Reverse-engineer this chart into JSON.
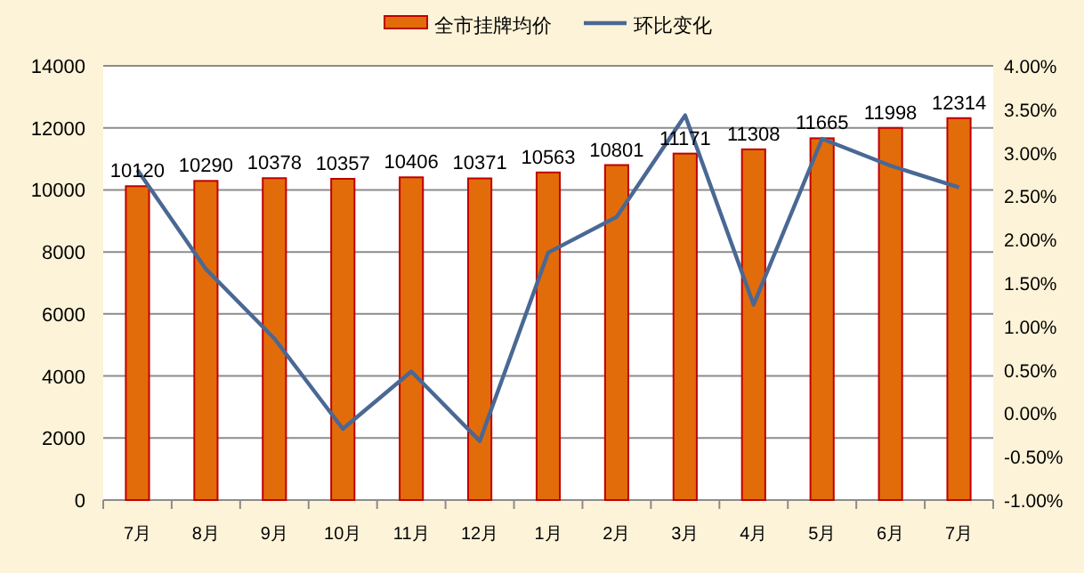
{
  "chart_data": {
    "type": "bar",
    "categories": [
      "7月",
      "8月",
      "9月",
      "10月",
      "11月",
      "12月",
      "1月",
      "2月",
      "3月",
      "4月",
      "5月",
      "6月",
      "7月"
    ],
    "series": [
      {
        "name": "全市挂牌均价",
        "color": "#e36c0a",
        "values": [
          10120,
          10290,
          10378,
          10357,
          10406,
          10371,
          10563,
          10801,
          11171,
          11308,
          11665,
          11998,
          12314
        ],
        "value_labels": [
          "10120",
          "10290",
          "10378",
          "10357",
          "10406",
          "10371",
          "10563",
          "10801",
          "11171",
          "11308",
          "11665",
          "11998",
          "12314"
        ]
      },
      {
        "name": "环比变化",
        "type": "line",
        "axis": "y2",
        "color": "#4a6894",
        "values": [
          2.8,
          1.66,
          0.86,
          -0.18,
          0.48,
          -0.32,
          1.85,
          2.26,
          3.43,
          1.25,
          3.16,
          2.85,
          2.6
        ]
      }
    ],
    "ylim": [
      0,
      14000
    ],
    "yticks": [
      0,
      2000,
      4000,
      6000,
      8000,
      10000,
      12000,
      14000
    ],
    "y2lim": [
      -1,
      4
    ],
    "y2ticks": [
      {
        "value": -1,
        "label": "-1.00%"
      },
      {
        "value": -0.5,
        "label": "-0.50%"
      },
      {
        "value": 0,
        "label": "0.00%"
      },
      {
        "value": 0.5,
        "label": "0.50%"
      },
      {
        "value": 1,
        "label": "1.00%"
      },
      {
        "value": 1.5,
        "label": "1.50%"
      },
      {
        "value": 2,
        "label": "2.00%"
      },
      {
        "value": 2.5,
        "label": "2.50%"
      },
      {
        "value": 3,
        "label": "3.00%"
      },
      {
        "value": 3.5,
        "label": "3.50%"
      },
      {
        "value": 4,
        "label": "4.00%"
      }
    ],
    "grid": "y",
    "legend": "top",
    "marker": "none",
    "line_style": "solid"
  }
}
